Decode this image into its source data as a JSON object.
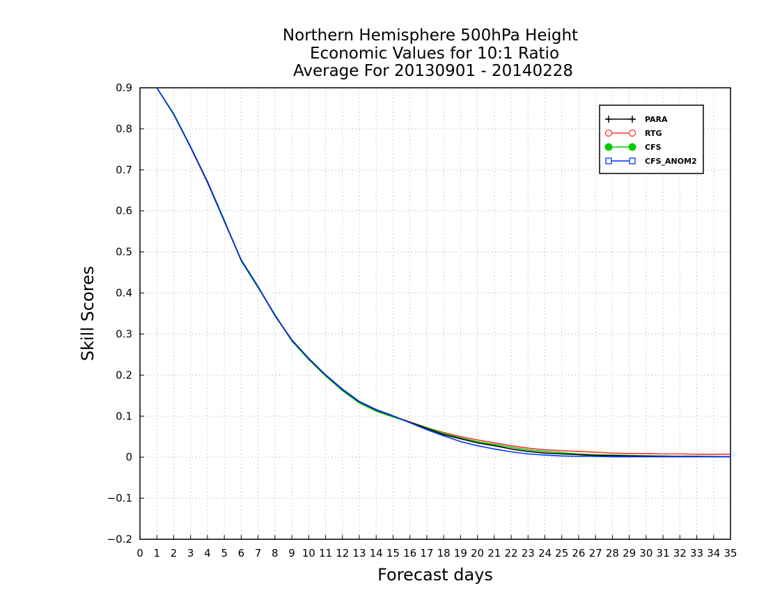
{
  "chart_data": {
    "type": "line",
    "title": [
      "Northern Hemisphere 500hPa Height",
      "Economic Values for 10:1 Ratio",
      "Average For 20130901 - 20140228"
    ],
    "xlabel": "Forecast days",
    "ylabel": "Skill Scores",
    "xlim": [
      0,
      35
    ],
    "ylim": [
      -0.2,
      0.9
    ],
    "x_ticks": [
      "0",
      "1",
      "2",
      "3",
      "4",
      "5",
      "6",
      "7",
      "8",
      "9",
      "10",
      "11",
      "12",
      "13",
      "14",
      "15",
      "16",
      "17",
      "18",
      "19",
      "20",
      "21",
      "22",
      "23",
      "24",
      "25",
      "26",
      "27",
      "28",
      "29",
      "30",
      "31",
      "32",
      "33",
      "34",
      "35"
    ],
    "y_ticks": [
      "−0.2",
      "−0.1",
      "0",
      "0.1",
      "0.2",
      "0.3",
      "0.4",
      "0.5",
      "0.6",
      "0.7",
      "0.8",
      "0.9"
    ],
    "y_tick_values": [
      -0.2,
      -0.1,
      0,
      0.1,
      0.2,
      0.3,
      0.4,
      0.5,
      0.6,
      0.7,
      0.8,
      0.9
    ],
    "grid": true,
    "legend_position": "top-right",
    "x": [
      1,
      2,
      3,
      4,
      5,
      6,
      7,
      8,
      9,
      10,
      11,
      12,
      13,
      14,
      15,
      16,
      17,
      18,
      19,
      20,
      21,
      22,
      23,
      24,
      25,
      26,
      27,
      28,
      29,
      30,
      31,
      32,
      33,
      34,
      35
    ],
    "series": [
      {
        "name": "PARA",
        "color": "#000000",
        "marker": "plus",
        "values": [
          0.9,
          0.835,
          0.755,
          0.67,
          0.575,
          0.48,
          0.415,
          0.345,
          0.285,
          0.24,
          0.2,
          0.165,
          0.135,
          0.115,
          0.1,
          0.085,
          0.07,
          0.055,
          0.045,
          0.035,
          0.028,
          0.02,
          0.014,
          0.01,
          0.008,
          0.006,
          0.004,
          0.004,
          0.003,
          0.003,
          0.002,
          0.002,
          0.002,
          0.001,
          0.001
        ]
      },
      {
        "name": "RTG",
        "color": "#ff3333",
        "marker": "open-circle",
        "values": [
          0.9,
          0.835,
          0.755,
          0.67,
          0.575,
          0.48,
          0.415,
          0.345,
          0.285,
          0.24,
          0.2,
          0.165,
          0.135,
          0.115,
          0.1,
          0.086,
          0.072,
          0.06,
          0.05,
          0.042,
          0.035,
          0.028,
          0.022,
          0.018,
          0.016,
          0.014,
          0.012,
          0.01,
          0.009,
          0.009,
          0.008,
          0.008,
          0.007,
          0.007,
          0.007
        ]
      },
      {
        "name": "CFS",
        "color": "#00cc00",
        "marker": "filled-circle",
        "values": [
          0.9,
          0.837,
          0.757,
          0.672,
          0.578,
          0.478,
          0.413,
          0.348,
          0.283,
          0.238,
          0.198,
          0.162,
          0.132,
          0.112,
          0.098,
          0.085,
          0.072,
          0.058,
          0.047,
          0.038,
          0.031,
          0.024,
          0.018,
          0.014,
          0.011,
          0.008,
          0.006,
          0.005,
          0.004,
          0.003,
          0.003,
          0.002,
          0.002,
          0.002,
          0.001
        ]
      },
      {
        "name": "CFS_ANOM2",
        "color": "#0033ff",
        "marker": "open-square",
        "values": [
          0.9,
          0.835,
          0.756,
          0.672,
          0.576,
          0.481,
          0.416,
          0.346,
          0.286,
          0.241,
          0.201,
          0.166,
          0.136,
          0.116,
          0.101,
          0.084,
          0.067,
          0.052,
          0.038,
          0.028,
          0.02,
          0.013,
          0.008,
          0.005,
          0.003,
          0.002,
          0.002,
          0.001,
          0.001,
          0.001,
          0.001,
          0.001,
          0.001,
          0.001,
          0.001
        ]
      }
    ]
  }
}
